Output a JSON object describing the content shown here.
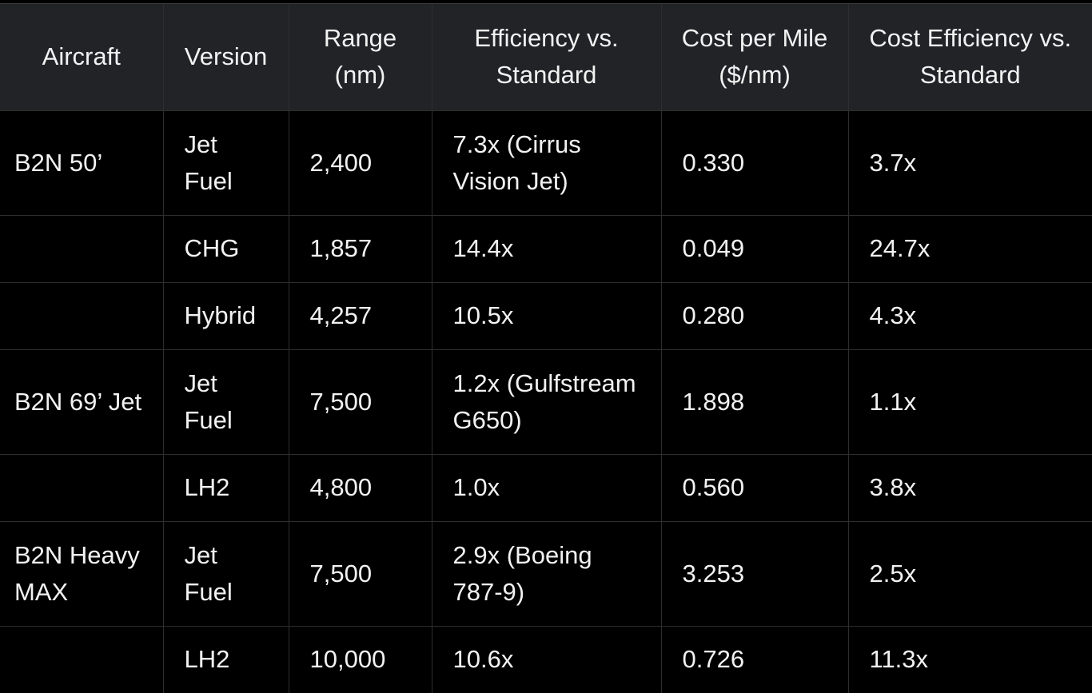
{
  "table": {
    "headers": [
      "Aircraft",
      "Version",
      "Range (nm)",
      "Efficiency vs. Standard",
      "Cost per Mile ($/nm)",
      "Cost Efficiency vs. Standard"
    ],
    "rows": [
      [
        "B2N 50’",
        "Jet Fuel",
        "2,400",
        "7.3x (Cirrus Vision Jet)",
        "0.330",
        "3.7x"
      ],
      [
        "",
        "CHG",
        "1,857",
        "14.4x",
        "0.049",
        "24.7x"
      ],
      [
        "",
        "Hybrid",
        "4,257",
        "10.5x",
        "0.280",
        "4.3x"
      ],
      [
        "B2N 69’ Jet",
        "Jet Fuel",
        "7,500",
        "1.2x (Gulfstream G650)",
        "1.898",
        "1.1x"
      ],
      [
        "",
        "LH2",
        "4,800",
        "1.0x",
        "0.560",
        "3.8x"
      ],
      [
        "B2N Heavy MAX",
        "Jet Fuel",
        "7,500",
        "2.9x (Boeing 787-9)",
        "3.253",
        "2.5x"
      ],
      [
        "",
        "LH2",
        "10,000",
        "10.6x",
        "0.726",
        "11.3x"
      ]
    ]
  },
  "colors": {
    "header_background": "#212327",
    "body_background": "#000000",
    "grid_line": "#2e2e2e",
    "text": "#f2f2f2"
  }
}
